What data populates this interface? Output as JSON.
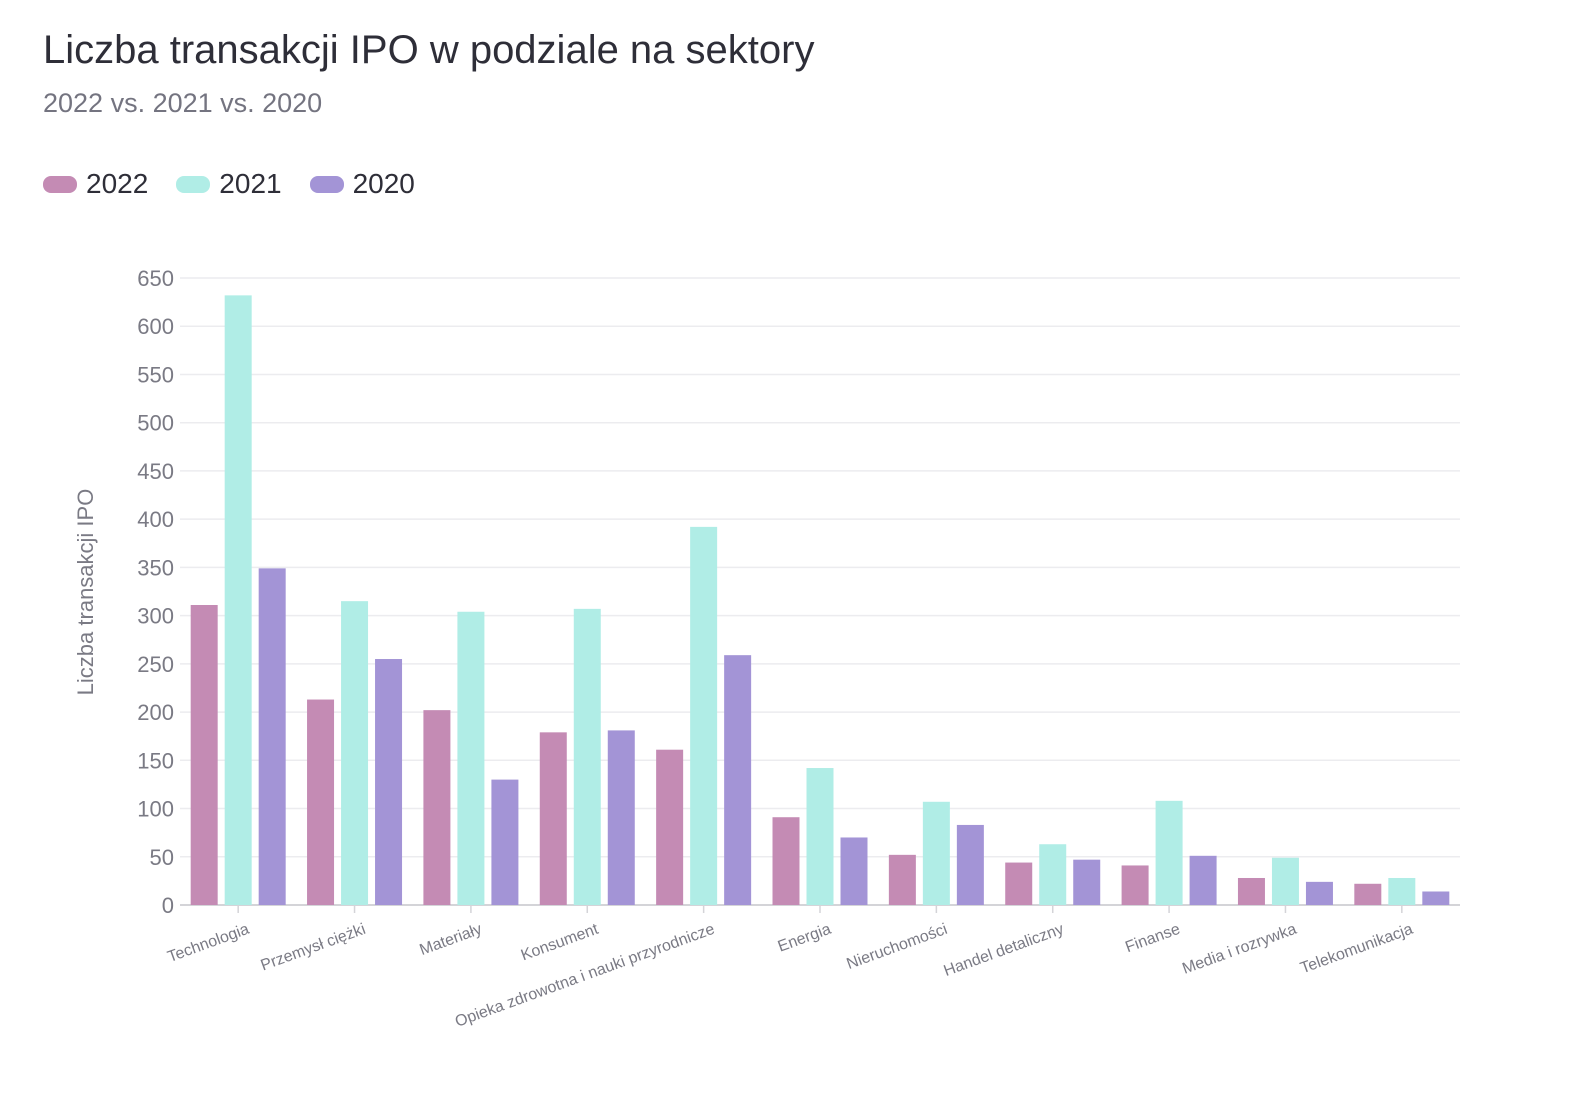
{
  "header": {
    "title": "Liczba transakcji IPO w podziale na sektory",
    "subtitle": "2022 vs. 2021 vs. 2020"
  },
  "chart_data": {
    "type": "bar",
    "title": "Liczba transakcji IPO w podziale na sektory",
    "subtitle": "2022 vs. 2021 vs. 2020",
    "xlabel": "",
    "ylabel": "Liczba transakcji IPO",
    "ylim": [
      0,
      650
    ],
    "yticks": [
      0,
      50,
      100,
      150,
      200,
      250,
      300,
      350,
      400,
      450,
      500,
      550,
      600,
      650
    ],
    "grid": true,
    "legend_position": "top-left",
    "categories": [
      "Technologia",
      "Przemysł ciężki",
      "Materiały",
      "Konsument",
      "Opieka zdrowotna i nauki przyrodnicze",
      "Energia",
      "Nieruchomości",
      "Handel detaliczny",
      "Finanse",
      "Media i rozrywka",
      "Telekomunikacja"
    ],
    "series": [
      {
        "name": "2022",
        "color": "#c48bb4",
        "values": [
          311,
          213,
          202,
          179,
          161,
          91,
          52,
          44,
          41,
          28,
          22
        ]
      },
      {
        "name": "2021",
        "color": "#b0ede6",
        "values": [
          632,
          315,
          304,
          307,
          392,
          142,
          107,
          63,
          108,
          49,
          28
        ]
      },
      {
        "name": "2020",
        "color": "#a394d6",
        "values": [
          349,
          255,
          130,
          181,
          259,
          70,
          83,
          47,
          51,
          24,
          14
        ]
      }
    ]
  }
}
